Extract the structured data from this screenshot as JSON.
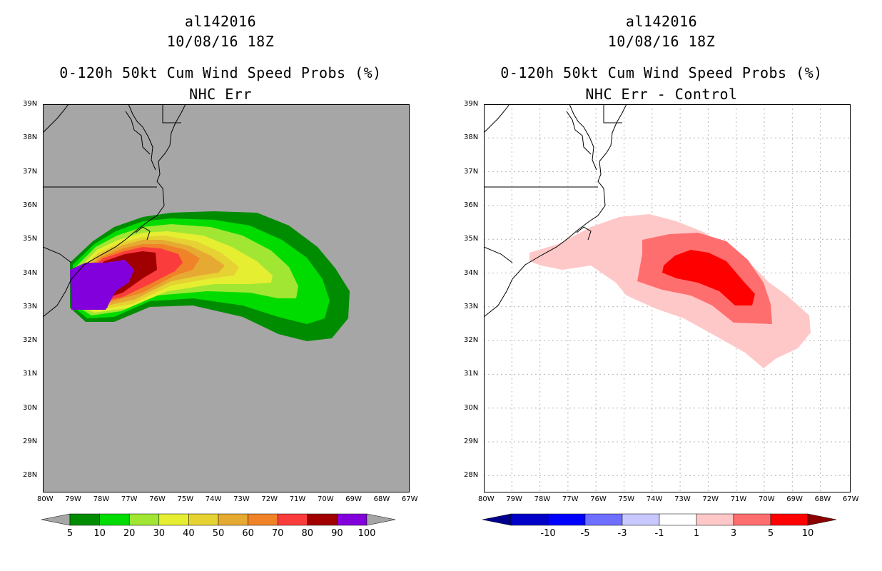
{
  "left_panel": {
    "title_lines": [
      "al142016",
      "10/08/16 18Z",
      "0-120h 50kt Cum Wind Speed Probs (%)",
      "NHC Err"
    ],
    "background_color": "#a6a6a6",
    "colorbar": {
      "labels": [
        "5",
        "10",
        "20",
        "30",
        "40",
        "50",
        "60",
        "70",
        "80",
        "90",
        "100"
      ],
      "colors": [
        "#008c00",
        "#00dc00",
        "#a0e632",
        "#e6ee32",
        "#e6d232",
        "#e6aa32",
        "#f08228",
        "#fa3c3c",
        "#a00000",
        "#8200dc"
      ],
      "end_color": "#a6a6a6"
    }
  },
  "right_panel": {
    "title_lines": [
      "al142016",
      "10/08/16 18Z",
      "0-120h 50kt Cum Wind Speed Probs (%)",
      "NHC Err - Control"
    ],
    "background_color": "#ffffff",
    "colorbar": {
      "labels": [
        "-10",
        "-5",
        "-3",
        "-1",
        "1",
        "3",
        "5",
        "10"
      ],
      "colors": [
        "#0000c8",
        "#0000ff",
        "#6e6eff",
        "#c8c8ff",
        "#ffffff",
        "#ffc8c8",
        "#ff6e6e",
        "#ff0000"
      ],
      "low_end_color": "#00008c",
      "high_end_color": "#8c0000"
    }
  },
  "axes": {
    "lat_labels": [
      "39N",
      "38N",
      "37N",
      "36N",
      "35N",
      "34N",
      "33N",
      "32N",
      "31N",
      "30N",
      "29N",
      "28N"
    ],
    "lon_labels": [
      "80W",
      "79W",
      "78W",
      "77W",
      "76W",
      "75W",
      "74W",
      "73W",
      "72W",
      "71W",
      "70W",
      "69W",
      "68W",
      "67W"
    ]
  }
}
